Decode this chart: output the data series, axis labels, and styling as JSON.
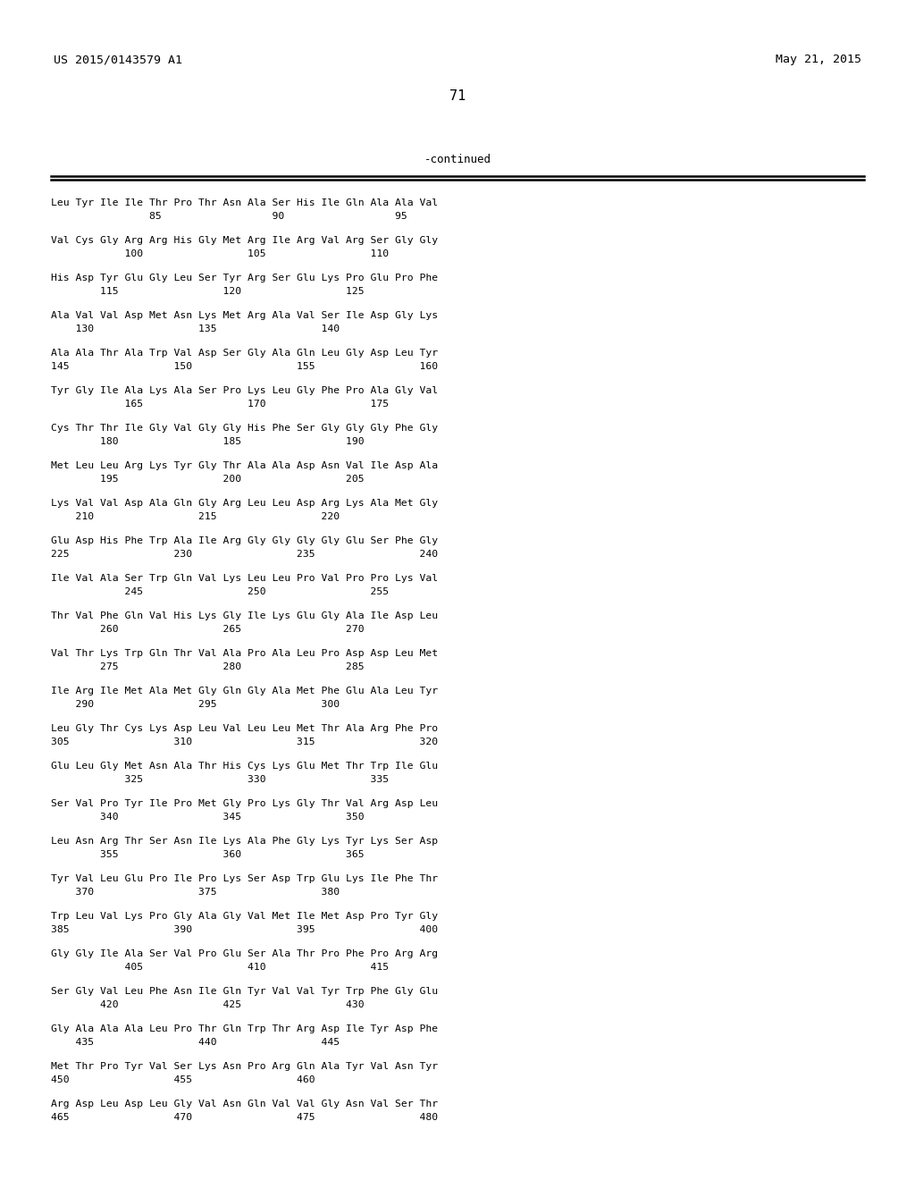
{
  "header_left": "US 2015/0143579 A1",
  "header_right": "May 21, 2015",
  "page_number": "71",
  "continued_text": "-continued",
  "background_color": "#ffffff",
  "text_color": "#000000",
  "blocks": [
    [
      "Leu Tyr Ile Ile Thr Pro Thr Asn Ala Ser His Ile Gln Ala Ala Val",
      "                85                  90                  95"
    ],
    [
      "Val Cys Gly Arg Arg His Gly Met Arg Ile Arg Val Arg Ser Gly Gly",
      "            100                 105                 110"
    ],
    [
      "His Asp Tyr Glu Gly Leu Ser Tyr Arg Ser Glu Lys Pro Glu Pro Phe",
      "        115                 120                 125"
    ],
    [
      "Ala Val Val Asp Met Asn Lys Met Arg Ala Val Ser Ile Asp Gly Lys",
      "    130                 135                 140"
    ],
    [
      "Ala Ala Thr Ala Trp Val Asp Ser Gly Ala Gln Leu Gly Asp Leu Tyr",
      "145                 150                 155                 160"
    ],
    [
      "Tyr Gly Ile Ala Lys Ala Ser Pro Lys Leu Gly Phe Pro Ala Gly Val",
      "            165                 170                 175"
    ],
    [
      "Cys Thr Thr Ile Gly Val Gly Gly His Phe Ser Gly Gly Gly Phe Gly",
      "        180                 185                 190"
    ],
    [
      "Met Leu Leu Arg Lys Tyr Gly Thr Ala Ala Asp Asn Val Ile Asp Ala",
      "        195                 200                 205"
    ],
    [
      "Lys Val Val Asp Ala Gln Gly Arg Leu Leu Asp Arg Lys Ala Met Gly",
      "    210                 215                 220"
    ],
    [
      "Glu Asp His Phe Trp Ala Ile Arg Gly Gly Gly Gly Glu Ser Phe Gly",
      "225                 230                 235                 240"
    ],
    [
      "Ile Val Ala Ser Trp Gln Val Lys Leu Leu Pro Val Pro Pro Lys Val",
      "            245                 250                 255"
    ],
    [
      "Thr Val Phe Gln Val His Lys Gly Ile Lys Glu Gly Ala Ile Asp Leu",
      "        260                 265                 270"
    ],
    [
      "Val Thr Lys Trp Gln Thr Val Ala Pro Ala Leu Pro Asp Asp Leu Met",
      "        275                 280                 285"
    ],
    [
      "Ile Arg Ile Met Ala Met Gly Gln Gly Ala Met Phe Glu Ala Leu Tyr",
      "    290                 295                 300"
    ],
    [
      "Leu Gly Thr Cys Lys Asp Leu Val Leu Leu Met Thr Ala Arg Phe Pro",
      "305                 310                 315                 320"
    ],
    [
      "Glu Leu Gly Met Asn Ala Thr His Cys Lys Glu Met Thr Trp Ile Glu",
      "            325                 330                 335"
    ],
    [
      "Ser Val Pro Tyr Ile Pro Met Gly Pro Lys Gly Thr Val Arg Asp Leu",
      "        340                 345                 350"
    ],
    [
      "Leu Asn Arg Thr Ser Asn Ile Lys Ala Phe Gly Lys Tyr Lys Ser Asp",
      "        355                 360                 365"
    ],
    [
      "Tyr Val Leu Glu Pro Ile Pro Lys Ser Asp Trp Glu Lys Ile Phe Thr",
      "    370                 375                 380"
    ],
    [
      "Trp Leu Val Lys Pro Gly Ala Gly Val Met Ile Met Asp Pro Tyr Gly",
      "385                 390                 395                 400"
    ],
    [
      "Gly Gly Ile Ala Ser Val Pro Glu Ser Ala Thr Pro Phe Pro Arg Arg",
      "            405                 410                 415"
    ],
    [
      "Ser Gly Val Leu Phe Asn Ile Gln Tyr Val Val Tyr Trp Phe Gly Glu",
      "        420                 425                 430"
    ],
    [
      "Gly Ala Ala Ala Leu Pro Thr Gln Trp Thr Arg Asp Ile Tyr Asp Phe",
      "    435                 440                 445"
    ],
    [
      "Met Thr Pro Tyr Val Ser Lys Asn Pro Arg Gln Ala Tyr Val Asn Tyr",
      "450                 455                 460"
    ],
    [
      "Arg Asp Leu Asp Leu Gly Val Asn Gln Val Val Gly Asn Val Ser Thr",
      "465                 470                 475                 480"
    ]
  ]
}
